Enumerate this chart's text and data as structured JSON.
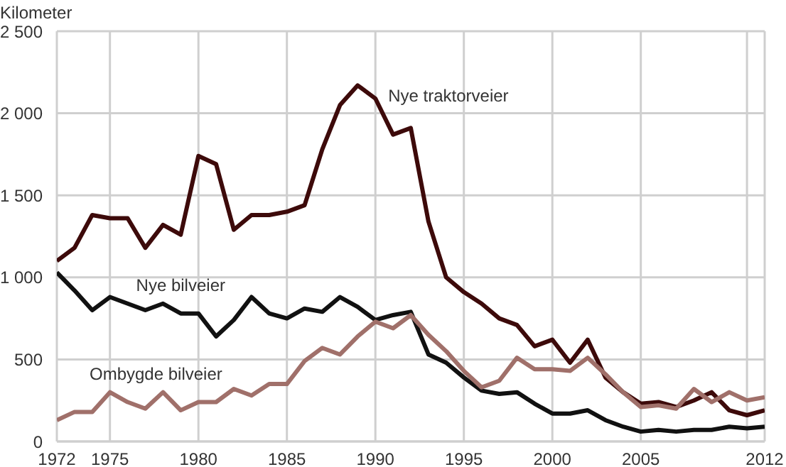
{
  "chart_data": {
    "type": "line",
    "ylabel": "Kilometer",
    "x": [
      1972,
      1973,
      1974,
      1975,
      1976,
      1977,
      1978,
      1979,
      1980,
      1981,
      1982,
      1983,
      1984,
      1985,
      1986,
      1987,
      1988,
      1989,
      1990,
      1991,
      1992,
      1993,
      1994,
      1995,
      1996,
      1997,
      1998,
      1999,
      2000,
      2001,
      2002,
      2003,
      2004,
      2005,
      2006,
      2007,
      2008,
      2009,
      2010,
      2011,
      2012
    ],
    "series": [
      {
        "name": "Nye traktorveier",
        "color": "#3d0a0a",
        "values": [
          1100,
          1180,
          1380,
          1360,
          1360,
          1180,
          1320,
          1260,
          1740,
          1690,
          1290,
          1380,
          1380,
          1400,
          1440,
          1780,
          2050,
          2170,
          2090,
          1870,
          1910,
          1340,
          1000,
          910,
          840,
          750,
          710,
          580,
          620,
          480,
          620,
          390,
          300,
          230,
          240,
          210,
          250,
          300,
          190,
          160,
          190
        ]
      },
      {
        "name": "Nye bilveier",
        "color": "#111111",
        "values": [
          1030,
          920,
          800,
          880,
          840,
          800,
          840,
          780,
          780,
          640,
          740,
          880,
          780,
          750,
          810,
          790,
          880,
          820,
          740,
          770,
          790,
          530,
          480,
          390,
          310,
          290,
          300,
          230,
          170,
          170,
          190,
          130,
          90,
          60,
          70,
          60,
          70,
          70,
          90,
          80,
          90
        ]
      },
      {
        "name": "Ombygde bilveier",
        "color": "#a0706a",
        "values": [
          130,
          180,
          180,
          300,
          240,
          200,
          300,
          190,
          240,
          240,
          320,
          280,
          350,
          350,
          490,
          570,
          530,
          640,
          730,
          690,
          770,
          650,
          550,
          430,
          330,
          370,
          510,
          440,
          440,
          430,
          510,
          410,
          300,
          210,
          220,
          200,
          320,
          240,
          300,
          250,
          270
        ]
      }
    ],
    "xlim": [
      1972,
      2012
    ],
    "xticks": [
      1972,
      1975,
      1980,
      1985,
      1990,
      1995,
      2000,
      2005,
      {
        "value": 2011,
        "label": null
      },
      2012
    ],
    "ylim": [
      0,
      2500
    ],
    "yticks": [
      0,
      500,
      {
        "value": 1000,
        "label": "1 000"
      },
      {
        "value": 1500,
        "label": "1 500"
      },
      {
        "value": 2000,
        "label": "2 000"
      },
      {
        "value": 2500,
        "label": "2 500"
      }
    ],
    "grid": true,
    "legend": false,
    "marker": "none",
    "line_style": "solid"
  }
}
